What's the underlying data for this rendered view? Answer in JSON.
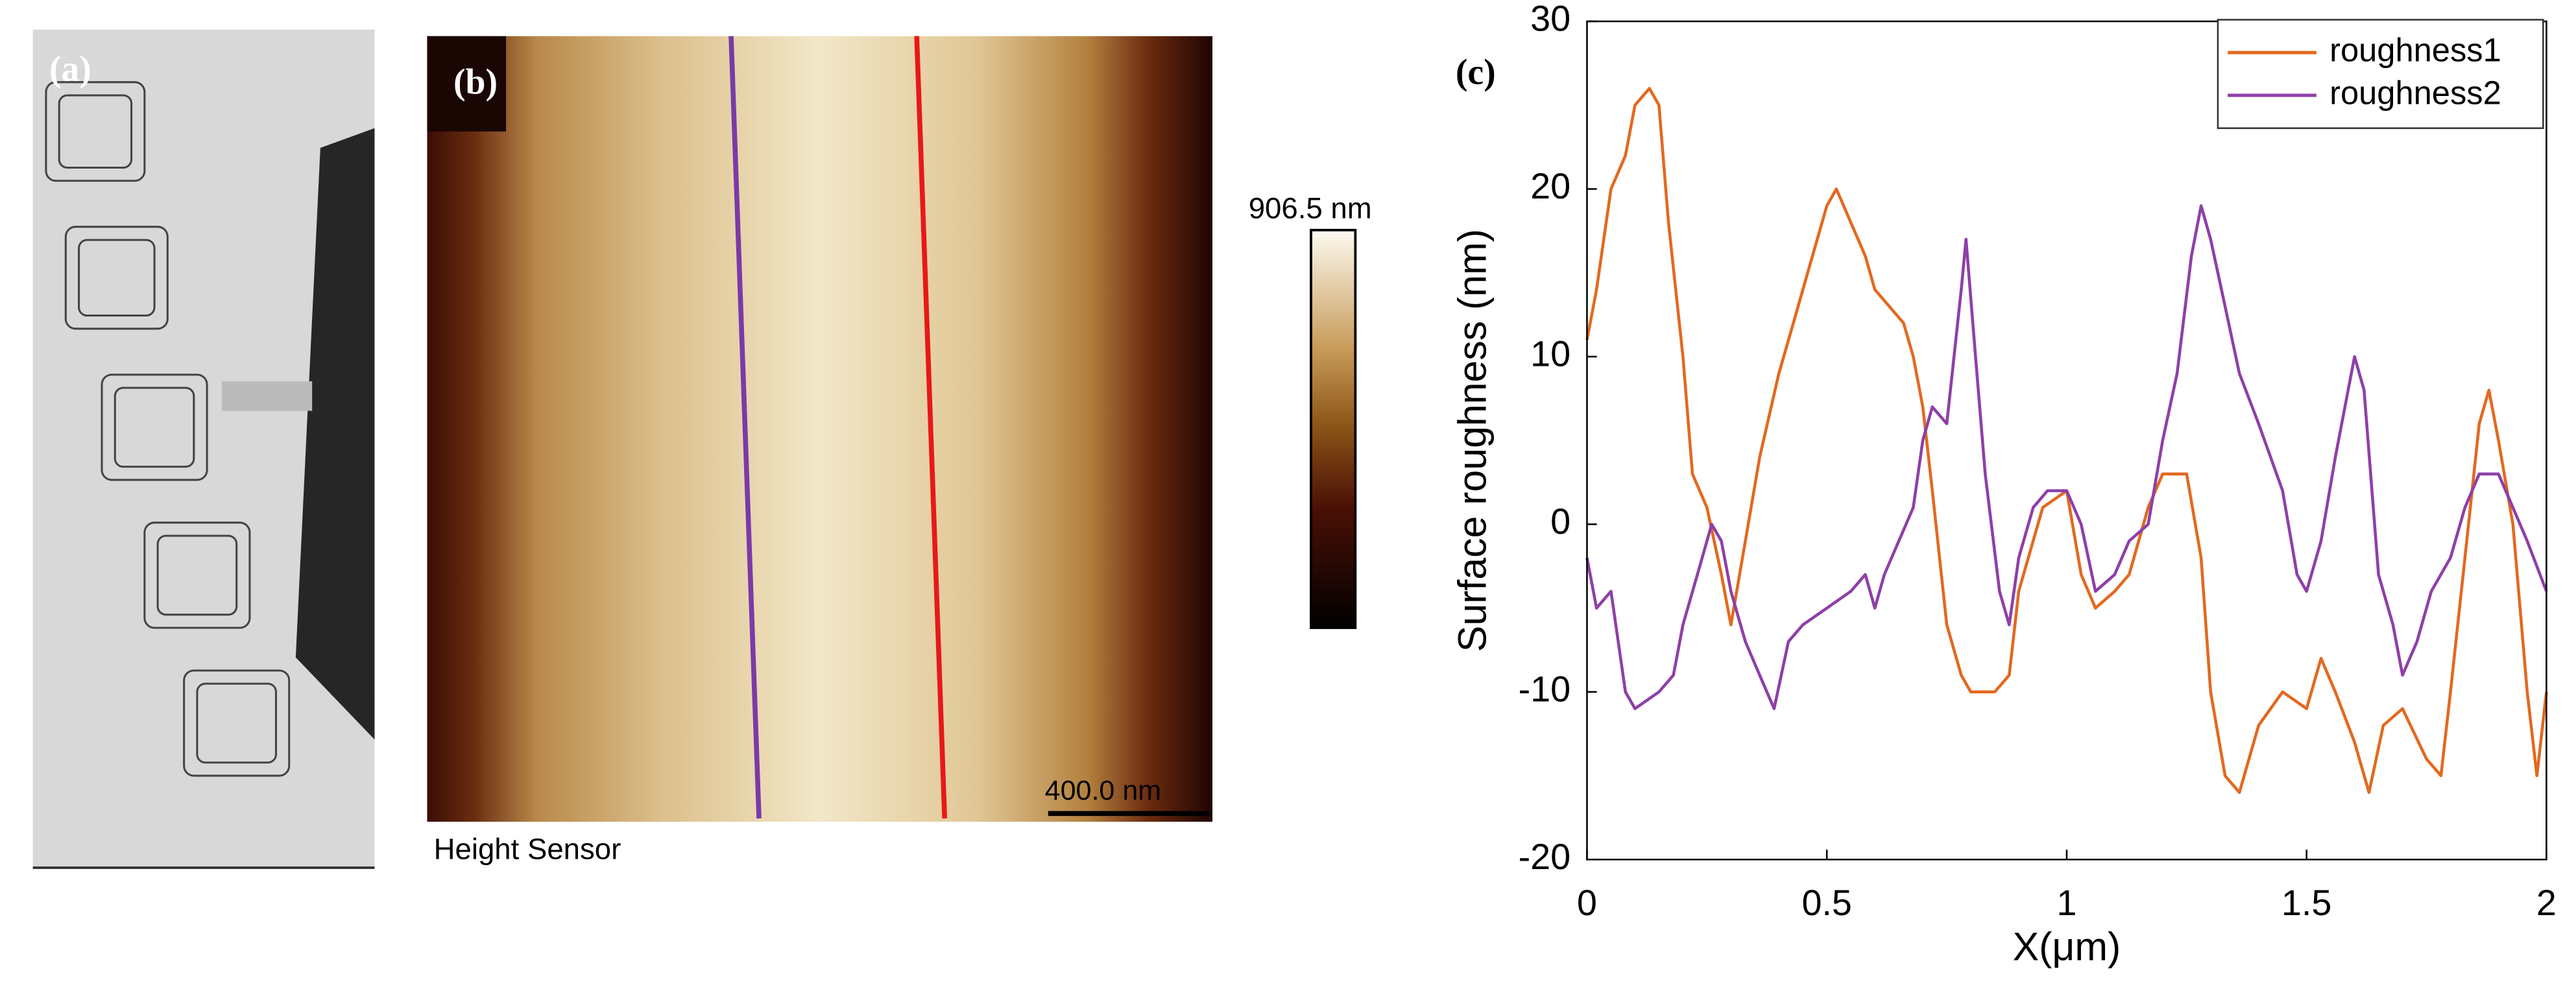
{
  "panels": {
    "a": "(a)",
    "b": "(b)",
    "colorbar_label": "906.5 nm",
    "scale_bar": "400.0 nm",
    "image_caption": "Height Sensor"
  },
  "chart_data": {
    "type": "line",
    "label": "(c)",
    "xlabel": "X(μm)",
    "ylabel": "Surface roughness (nm)",
    "xlim": [
      0,
      2
    ],
    "xticks": [
      0,
      0.5,
      1,
      1.5,
      2
    ],
    "ylim": [
      -20,
      30
    ],
    "yticks": [
      -20,
      -10,
      0,
      10,
      20,
      30
    ],
    "legend": "upper right",
    "series": [
      {
        "name": "roughness1",
        "color": "#e2691f",
        "x": [
          0,
          0.02,
          0.05,
          0.08,
          0.1,
          0.13,
          0.15,
          0.17,
          0.2,
          0.22,
          0.25,
          0.28,
          0.3,
          0.33,
          0.36,
          0.4,
          0.43,
          0.46,
          0.5,
          0.52,
          0.55,
          0.58,
          0.6,
          0.63,
          0.66,
          0.68,
          0.7,
          0.72,
          0.75,
          0.78,
          0.8,
          0.85,
          0.88,
          0.9,
          0.95,
          1.0,
          1.03,
          1.06,
          1.1,
          1.13,
          1.17,
          1.2,
          1.25,
          1.28,
          1.3,
          1.33,
          1.36,
          1.4,
          1.45,
          1.5,
          1.53,
          1.56,
          1.6,
          1.63,
          1.66,
          1.7,
          1.75,
          1.78,
          1.8,
          1.83,
          1.86,
          1.88,
          1.9,
          1.93,
          1.96,
          1.98,
          2.0
        ],
        "values": [
          11,
          14,
          20,
          22,
          25,
          26,
          25,
          18,
          10,
          3,
          1,
          -3,
          -6,
          -1,
          4,
          9,
          12,
          15,
          19,
          20,
          18,
          16,
          14,
          13,
          12,
          10,
          7,
          2,
          -6,
          -9,
          -10,
          -10,
          -9,
          -4,
          1,
          2,
          -3,
          -5,
          -4,
          -3,
          1,
          3,
          3,
          -2,
          -10,
          -15,
          -16,
          -12,
          -10,
          -11,
          -8,
          -10,
          -13,
          -16,
          -12,
          -11,
          -14,
          -15,
          -10,
          -2,
          6,
          8,
          5,
          0,
          -10,
          -15,
          -10
        ]
      },
      {
        "name": "roughness2",
        "color": "#8e3fa8",
        "x": [
          0,
          0.02,
          0.05,
          0.08,
          0.1,
          0.15,
          0.18,
          0.2,
          0.23,
          0.26,
          0.28,
          0.3,
          0.33,
          0.36,
          0.39,
          0.42,
          0.45,
          0.5,
          0.55,
          0.58,
          0.6,
          0.62,
          0.65,
          0.68,
          0.7,
          0.72,
          0.75,
          0.78,
          0.79,
          0.81,
          0.83,
          0.86,
          0.88,
          0.9,
          0.93,
          0.96,
          1.0,
          1.03,
          1.06,
          1.1,
          1.13,
          1.17,
          1.2,
          1.23,
          1.26,
          1.28,
          1.3,
          1.33,
          1.36,
          1.4,
          1.45,
          1.48,
          1.5,
          1.53,
          1.56,
          1.6,
          1.62,
          1.65,
          1.68,
          1.7,
          1.73,
          1.76,
          1.8,
          1.83,
          1.86,
          1.9,
          1.93,
          1.96,
          2.0
        ],
        "values": [
          -2,
          -5,
          -4,
          -10,
          -11,
          -10,
          -9,
          -6,
          -3,
          0,
          -1,
          -4,
          -7,
          -9,
          -11,
          -7,
          -6,
          -5,
          -4,
          -3,
          -5,
          -3,
          -1,
          1,
          5,
          7,
          6,
          14,
          17,
          10,
          3,
          -4,
          -6,
          -2,
          1,
          2,
          2,
          0,
          -4,
          -3,
          -1,
          0,
          5,
          9,
          16,
          19,
          17,
          13,
          9,
          6,
          2,
          -3,
          -4,
          -1,
          4,
          10,
          8,
          -3,
          -6,
          -9,
          -7,
          -4,
          -2,
          1,
          3,
          3,
          1,
          -1,
          -4
        ]
      }
    ]
  }
}
